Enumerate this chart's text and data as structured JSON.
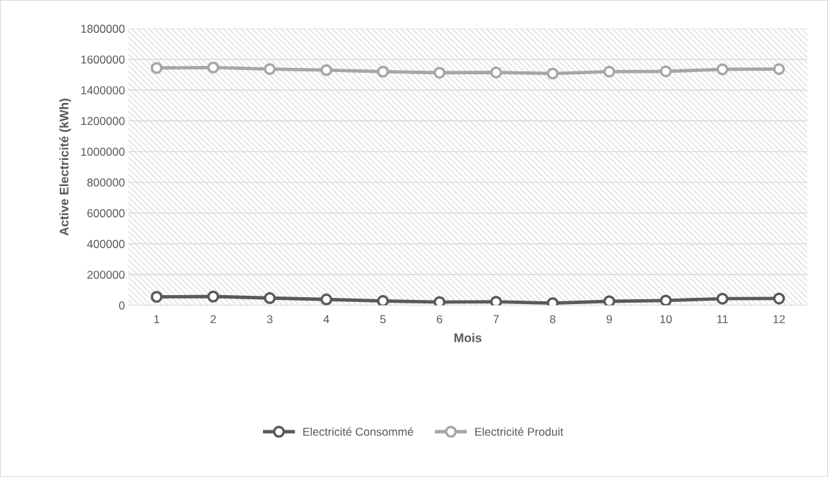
{
  "chart_data": {
    "type": "line",
    "xlabel": "Mois",
    "ylabel": "Active Electricité (kWh)",
    "categories": [
      "1",
      "2",
      "3",
      "4",
      "5",
      "6",
      "7",
      "8",
      "9",
      "10",
      "11",
      "12"
    ],
    "series": [
      {
        "name": "Electricité Consommé",
        "color": "#595959",
        "values": [
          55000,
          57000,
          47000,
          38000,
          28000,
          21000,
          23000,
          14000,
          26000,
          31000,
          43000,
          44000
        ]
      },
      {
        "name": "Electricité Produit",
        "color": "#a6a6a6",
        "values": [
          1544000,
          1547000,
          1537000,
          1530000,
          1520000,
          1513000,
          1515000,
          1508000,
          1520000,
          1522000,
          1535000,
          1537000
        ]
      }
    ],
    "ylim": [
      0,
      1800000
    ],
    "yticks": [
      0,
      200000,
      400000,
      600000,
      800000,
      1000000,
      1200000,
      1400000,
      1600000,
      1800000
    ],
    "grid": "y",
    "legend": "bottom",
    "marker": "circle",
    "line_style": "solid"
  }
}
